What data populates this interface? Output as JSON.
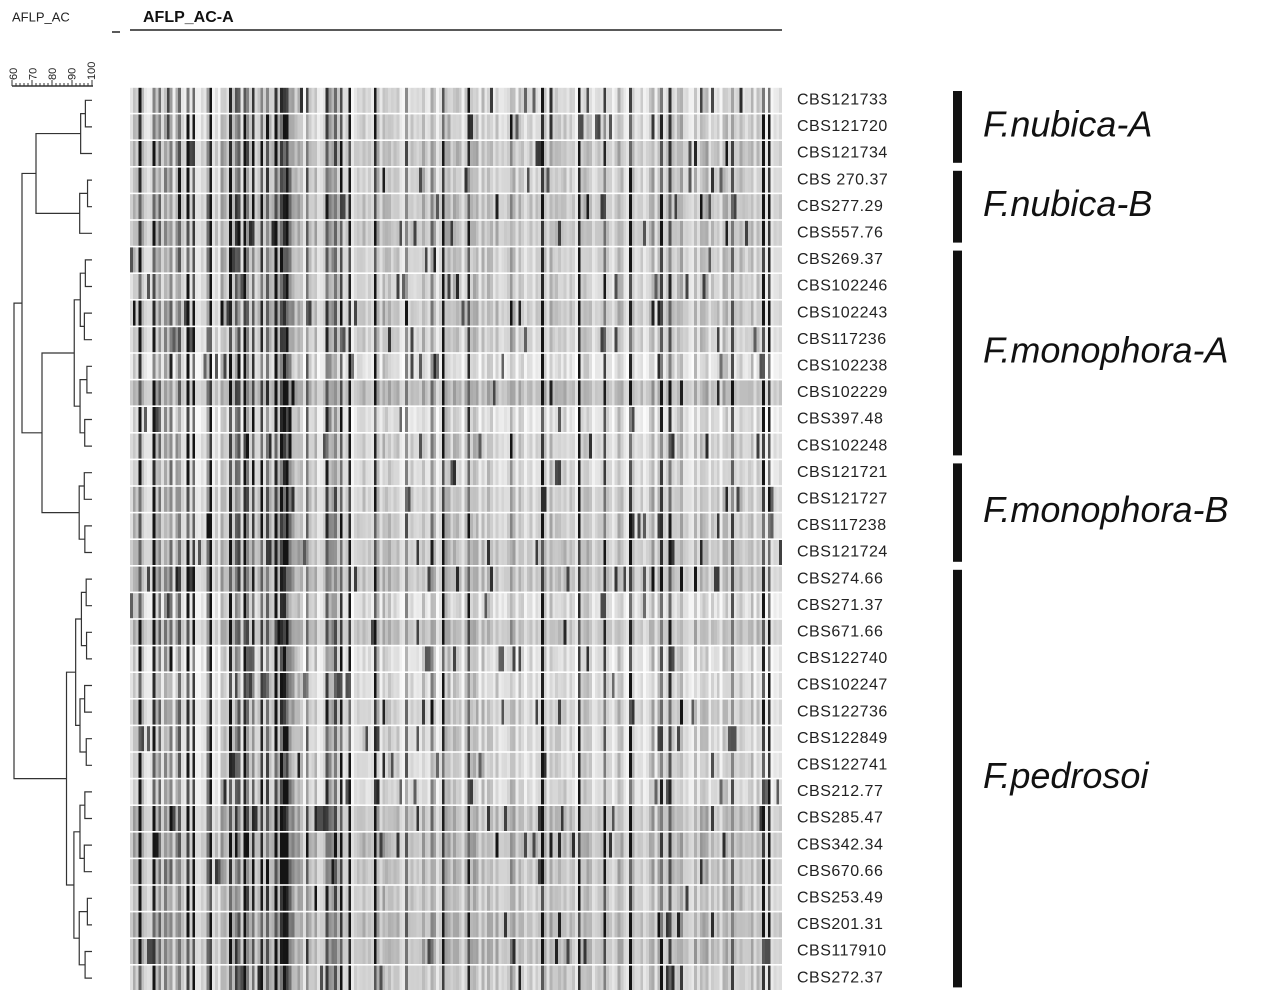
{
  "header": {
    "left_label": "AFLP_AC",
    "title": "AFLP_AC-A"
  },
  "scale": {
    "labels": [
      "60",
      "70",
      "80",
      "90",
      "100"
    ]
  },
  "groups": [
    {
      "label": "F.nubica-A",
      "strains": [
        "CBS121733",
        "CBS121720",
        "CBS121734"
      ]
    },
    {
      "label": "F.nubica-B",
      "strains": [
        "CBS 270.37",
        "CBS277.29",
        "CBS557.76"
      ]
    },
    {
      "label": "F.monophora-A",
      "strains": [
        "CBS269.37",
        "CBS102246",
        "CBS102243",
        "CBS117236",
        "CBS102238",
        "CBS102229",
        "CBS397.48",
        "CBS102248"
      ]
    },
    {
      "label": "F.monophora-B",
      "strains": [
        "CBS121721",
        "CBS121727",
        "CBS117238",
        "CBS121724"
      ]
    },
    {
      "label": "F.pedrosoi",
      "strains": [
        "CBS274.66",
        "CBS271.37",
        "CBS671.66",
        "CBS122740",
        "CBS102247",
        "CBS122736",
        "CBS122849",
        "CBS122741",
        "CBS212.77",
        "CBS285.47",
        "CBS342.34",
        "CBS670.66",
        "CBS253.49",
        "CBS201.31",
        "CBS117910",
        "CBS272.37"
      ]
    }
  ]
}
